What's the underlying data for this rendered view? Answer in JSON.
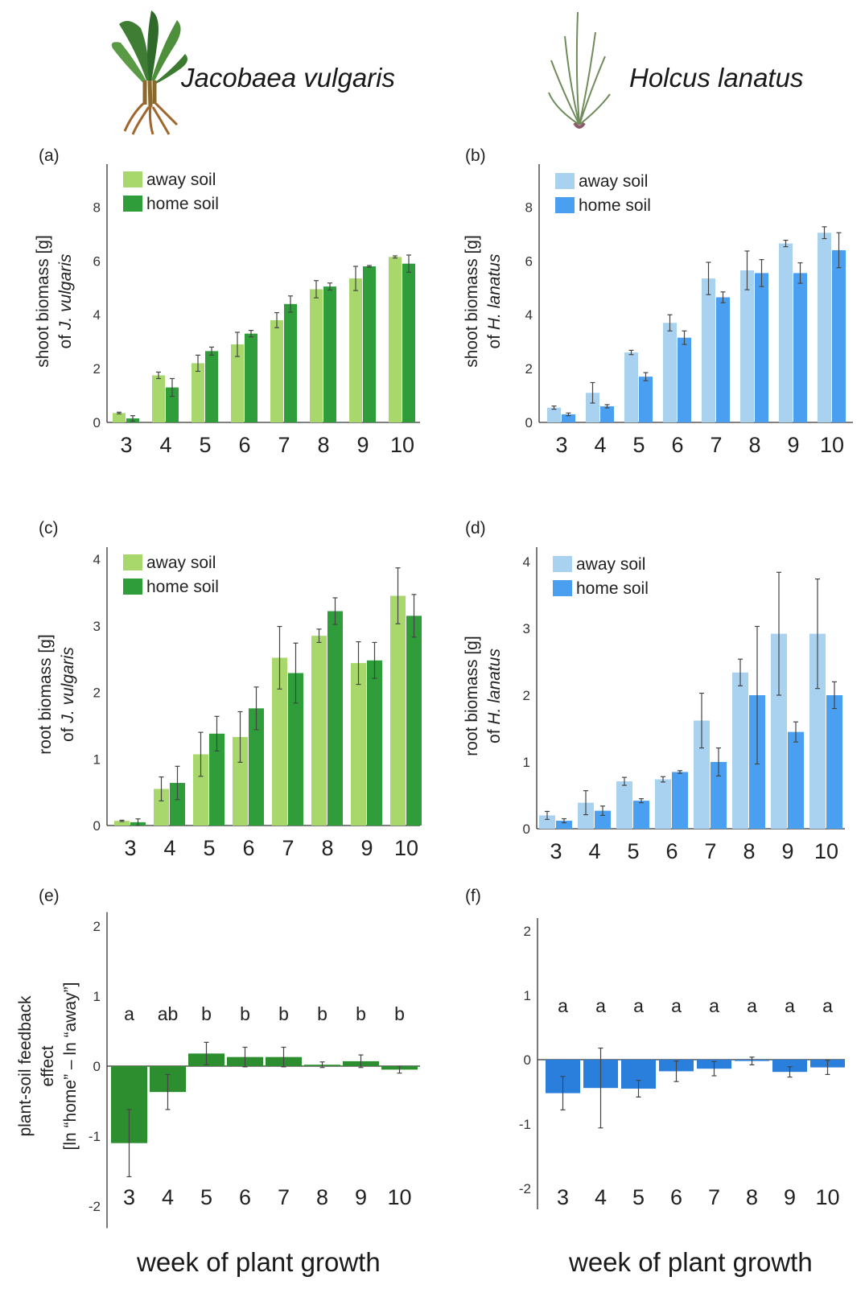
{
  "header": {
    "species_left": "Jacobaea vulgaris",
    "species_right": "Holcus lanatus"
  },
  "x_axis_title": "week of plant growth",
  "colors": {
    "jv_away": "#a8d86c",
    "jv_home": "#2f9e3a",
    "hl_away": "#a9d2f1",
    "hl_home": "#4a9ff0",
    "jv_psf": "#2d8e2f",
    "hl_psf": "#2a7fdd"
  },
  "chart_data": [
    {
      "id": "a",
      "panel_label": "(a)",
      "type": "bar",
      "ylabel": [
        "shoot biomass [g]",
        "of J. vulgaris"
      ],
      "categories": [
        "3",
        "4",
        "5",
        "6",
        "7",
        "8",
        "9",
        "10"
      ],
      "ylim": [
        0,
        9.5
      ],
      "yticks": [
        0,
        2,
        4,
        6,
        8
      ],
      "legend": "top-left",
      "series": [
        {
          "name": "away soil",
          "color": "jv_away",
          "values": [
            0.35,
            1.75,
            2.2,
            2.9,
            3.8,
            4.95,
            5.35,
            6.15
          ],
          "errors": [
            0.03,
            0.12,
            0.3,
            0.45,
            0.28,
            0.32,
            0.45,
            0.04
          ]
        },
        {
          "name": "home soil",
          "color": "jv_home",
          "values": [
            0.15,
            1.3,
            2.65,
            3.3,
            4.4,
            5.05,
            5.8,
            5.9
          ],
          "errors": [
            0.1,
            0.33,
            0.15,
            0.12,
            0.3,
            0.13,
            0.03,
            0.32
          ]
        }
      ]
    },
    {
      "id": "b",
      "panel_label": "(b)",
      "type": "bar",
      "ylabel": [
        "shoot biomass [g]",
        "of H. lanatus"
      ],
      "categories": [
        "3",
        "4",
        "5",
        "6",
        "7",
        "8",
        "9",
        "10"
      ],
      "ylim": [
        0,
        9.5
      ],
      "yticks": [
        0,
        2,
        4,
        6,
        8
      ],
      "legend": "top-left",
      "series": [
        {
          "name": "away soil",
          "color": "hl_away",
          "values": [
            0.55,
            1.1,
            2.6,
            3.7,
            5.35,
            5.65,
            6.65,
            7.05
          ],
          "errors": [
            0.06,
            0.38,
            0.08,
            0.3,
            0.6,
            0.72,
            0.12,
            0.22
          ]
        },
        {
          "name": "home soil",
          "color": "hl_home",
          "values": [
            0.3,
            0.6,
            1.7,
            3.15,
            4.65,
            5.55,
            5.55,
            6.4
          ],
          "errors": [
            0.05,
            0.06,
            0.15,
            0.25,
            0.2,
            0.5,
            0.38,
            0.65
          ]
        }
      ]
    },
    {
      "id": "c",
      "panel_label": "(c)",
      "type": "bar",
      "ylabel": [
        "root biomass [g]",
        "of J. vulgaris"
      ],
      "categories": [
        "3",
        "4",
        "5",
        "6",
        "7",
        "8",
        "9",
        "10"
      ],
      "ylim": [
        0,
        4.1
      ],
      "yticks": [
        0,
        1,
        2,
        3,
        4
      ],
      "legend": "top-left",
      "series": [
        {
          "name": "away soil",
          "color": "jv_away",
          "values": [
            0.07,
            0.55,
            1.07,
            1.33,
            2.52,
            2.85,
            2.44,
            3.45
          ],
          "errors": [
            0.01,
            0.18,
            0.33,
            0.38,
            0.47,
            0.1,
            0.32,
            0.42
          ]
        },
        {
          "name": "home soil",
          "color": "jv_home",
          "values": [
            0.05,
            0.64,
            1.38,
            1.76,
            2.29,
            3.22,
            2.48,
            3.15
          ],
          "errors": [
            0.05,
            0.25,
            0.26,
            0.32,
            0.45,
            0.2,
            0.27,
            0.32
          ]
        }
      ]
    },
    {
      "id": "d",
      "panel_label": "(d)",
      "type": "bar",
      "ylabel": [
        "root biomass [g]",
        "of H. lanatus"
      ],
      "categories": [
        "3",
        "4",
        "5",
        "6",
        "7",
        "8",
        "9",
        "10"
      ],
      "ylim": [
        0,
        4.2
      ],
      "yticks": [
        0,
        1,
        2,
        3,
        4
      ],
      "legend": "top-left",
      "series": [
        {
          "name": "away soil",
          "color": "hl_away",
          "values": [
            0.2,
            0.39,
            0.71,
            0.74,
            1.62,
            2.34,
            2.92,
            2.92
          ],
          "errors": [
            0.06,
            0.18,
            0.06,
            0.04,
            0.41,
            0.2,
            0.92,
            0.82
          ]
        },
        {
          "name": "home soil",
          "color": "hl_home",
          "values": [
            0.12,
            0.27,
            0.42,
            0.85,
            1.0,
            2.0,
            1.45,
            2.0
          ],
          "errors": [
            0.03,
            0.07,
            0.03,
            0.02,
            0.21,
            1.03,
            0.15,
            0.2
          ]
        }
      ]
    },
    {
      "id": "e",
      "panel_label": "(e)",
      "type": "bar",
      "ylabel": [
        "plant-soil feedback",
        "effect",
        "[ln “home” – ln “away”]"
      ],
      "categories": [
        "3",
        "4",
        "5",
        "6",
        "7",
        "8",
        "9",
        "10"
      ],
      "ylim": [
        -2.2,
        2.2
      ],
      "yticks": [
        -2,
        -1,
        0,
        1,
        2
      ],
      "series": [
        {
          "color": "jv_psf",
          "values": [
            -1.1,
            -0.37,
            0.18,
            0.13,
            0.13,
            0.02,
            0.07,
            -0.05
          ],
          "errors": [
            0.48,
            0.25,
            0.16,
            0.14,
            0.14,
            0.04,
            0.09,
            0.05
          ]
        }
      ],
      "annotations": [
        "a",
        "ab",
        "b",
        "b",
        "b",
        "b",
        "b",
        "b"
      ]
    },
    {
      "id": "f",
      "panel_label": "(f)",
      "type": "bar",
      "ylabel": [],
      "categories": [
        "3",
        "4",
        "5",
        "6",
        "7",
        "8",
        "9",
        "10"
      ],
      "ylim": [
        -2.2,
        2.2
      ],
      "yticks": [
        -2,
        -1,
        0,
        1,
        2
      ],
      "series": [
        {
          "color": "hl_psf",
          "values": [
            -0.52,
            -0.44,
            -0.45,
            -0.18,
            -0.14,
            -0.02,
            -0.19,
            -0.12
          ],
          "errors": [
            0.26,
            0.62,
            0.13,
            0.16,
            0.11,
            0.06,
            0.08,
            0.11
          ]
        }
      ],
      "annotations": [
        "a",
        "a",
        "a",
        "a",
        "a",
        "a",
        "a",
        "a"
      ]
    }
  ]
}
